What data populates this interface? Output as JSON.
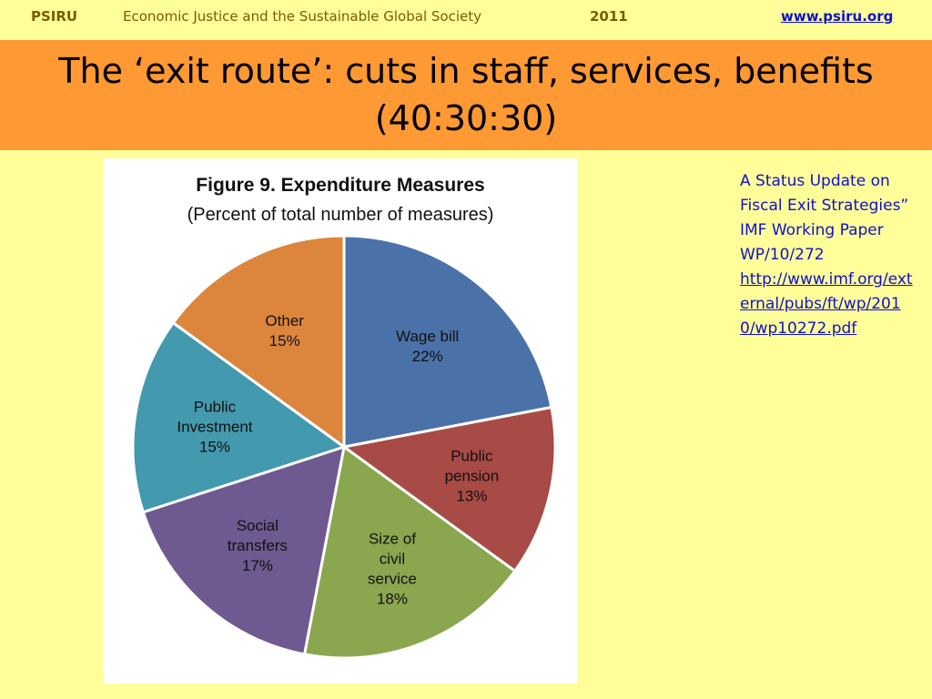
{
  "header": {
    "org": "PSIRU",
    "title": "Economic Justice and the Sustainable Global Society",
    "year": "2011",
    "link": "www.psiru.org"
  },
  "slide": {
    "title_line1": "The ‘exit route’: cuts in staff, services, benefits",
    "title_line2": "(40:30:30)"
  },
  "source_note": {
    "text": "A Status Update on Fiscal Exit Strategies” IMF Working Paper WP/10/272",
    "link": "http://www.imf.org/external/pubs/ft/wp/2010/wp10272.pdf"
  },
  "chart_data": {
    "type": "pie",
    "title": "Figure 9. Expenditure Measures",
    "subtitle": "(Percent of total number of measures)",
    "slices": [
      {
        "label": "Wage bill",
        "value": 22,
        "value_label": "22%",
        "color": "#4a72a8"
      },
      {
        "label": "Public pension",
        "value": 13,
        "value_label": "13%",
        "color": "#a84a45"
      },
      {
        "label": "Size of civil service",
        "value": 18,
        "value_label": "18%",
        "color": "#8aa64e"
      },
      {
        "label": "Social transfers",
        "value": 17,
        "value_label": "17%",
        "color": "#6e5990"
      },
      {
        "label": "Public Investment",
        "value": 15,
        "value_label": "15%",
        "color": "#4399ad"
      },
      {
        "label": "Other",
        "value": 15,
        "value_label": "15%",
        "color": "#dc853c"
      }
    ],
    "label_lines": [
      [
        "Wage bill",
        "22%"
      ],
      [
        "Public",
        "pension",
        "13%"
      ],
      [
        "Size of",
        "civil",
        "service",
        "18%"
      ],
      [
        "Social",
        "transfers",
        "17%"
      ],
      [
        "Public",
        "Investment",
        "15%"
      ],
      [
        "Other",
        "15%"
      ]
    ]
  }
}
